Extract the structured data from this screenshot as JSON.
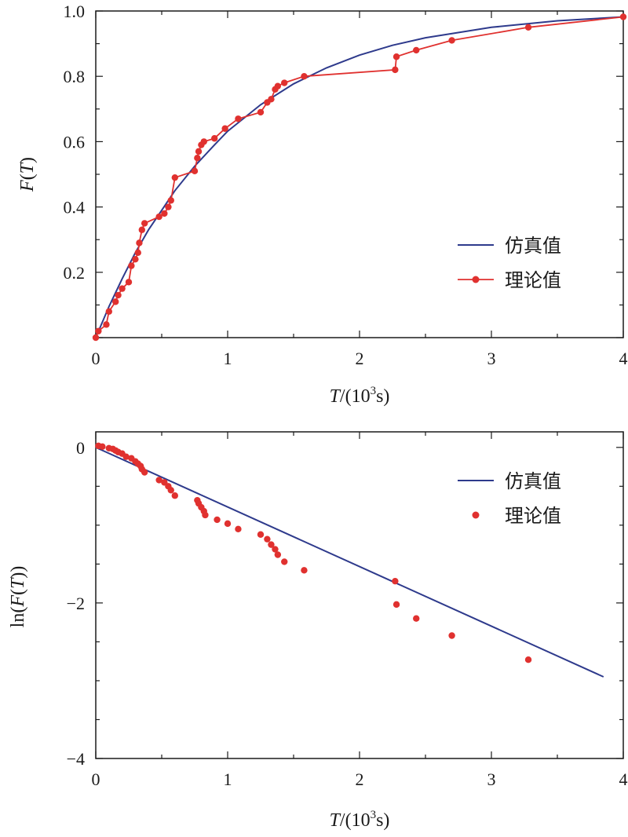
{
  "colors": {
    "sim": "#2e3a8c",
    "theory": "#e0312f",
    "axis": "#1a1a1a"
  },
  "chart_data": [
    {
      "type": "line",
      "title": "",
      "xlabel": "T/(10³s)",
      "xlabel_parts": {
        "T": "T",
        "unit_open": "/(10",
        "exp": "3",
        "unit_close": "s)"
      },
      "ylabel": "F(T)",
      "ylabel_parts": {
        "F": "F",
        "open": "(",
        "T": "T",
        "close": ")"
      },
      "xlim": [
        0,
        4
      ],
      "ylim": [
        0,
        1.0
      ],
      "xticks": [
        0,
        1,
        2,
        3,
        4
      ],
      "xtick_labels": [
        "0",
        "1",
        "2",
        "3",
        "4"
      ],
      "yticks": [
        0.2,
        0.4,
        0.6,
        0.8,
        1.0
      ],
      "ytick_labels": [
        "0.2",
        "0.4",
        "0.6",
        "0.8",
        "1.0"
      ],
      "grid": false,
      "legend_position": "lower-right",
      "series": [
        {
          "name": "仿真值",
          "style": "line",
          "x": [
            0,
            0.1,
            0.2,
            0.3,
            0.4,
            0.5,
            0.6,
            0.75,
            0.9,
            1.0,
            1.25,
            1.5,
            1.75,
            2.0,
            2.25,
            2.5,
            3.0,
            3.5,
            4.0
          ],
          "y": [
            0,
            0.095,
            0.18,
            0.26,
            0.33,
            0.39,
            0.45,
            0.525,
            0.59,
            0.632,
            0.713,
            0.777,
            0.826,
            0.865,
            0.895,
            0.918,
            0.95,
            0.97,
            0.982
          ]
        },
        {
          "name": "理论值",
          "style": "line-marker",
          "x": [
            0,
            0.02,
            0.08,
            0.1,
            0.15,
            0.17,
            0.2,
            0.25,
            0.27,
            0.3,
            0.32,
            0.33,
            0.35,
            0.37,
            0.48,
            0.52,
            0.55,
            0.57,
            0.6,
            0.75,
            0.77,
            0.78,
            0.8,
            0.82,
            0.9,
            0.98,
            1.08,
            1.25,
            1.3,
            1.33,
            1.36,
            1.38,
            1.43,
            1.58,
            2.27,
            2.28,
            2.43,
            2.7,
            3.28,
            4.0
          ],
          "y": [
            0,
            0.02,
            0.04,
            0.08,
            0.11,
            0.13,
            0.15,
            0.17,
            0.22,
            0.24,
            0.26,
            0.29,
            0.33,
            0.35,
            0.37,
            0.38,
            0.4,
            0.42,
            0.49,
            0.51,
            0.55,
            0.57,
            0.59,
            0.6,
            0.61,
            0.64,
            0.67,
            0.69,
            0.72,
            0.73,
            0.76,
            0.77,
            0.78,
            0.8,
            0.82,
            0.86,
            0.88,
            0.91,
            0.95,
            0.982
          ]
        }
      ]
    },
    {
      "type": "scatter",
      "title": "",
      "xlabel": "T/(10³s)",
      "xlabel_parts": {
        "T": "T",
        "unit_open": "/(10",
        "exp": "3",
        "unit_close": "s)"
      },
      "ylabel": "ln(F(T))",
      "ylabel_parts": {
        "ln": "ln(",
        "F": "F",
        "open": "(",
        "T": "T",
        "close": "))"
      },
      "xlim": [
        0,
        4
      ],
      "ylim": [
        -4,
        0.2
      ],
      "xticks": [
        0,
        1,
        2,
        3,
        4
      ],
      "xtick_labels": [
        "0",
        "1",
        "2",
        "3",
        "4"
      ],
      "yticks": [
        0,
        -2,
        -4
      ],
      "ytick_labels": [
        "0",
        "−2",
        "−4"
      ],
      "grid": false,
      "legend_position": "top-right",
      "series": [
        {
          "name": "仿真值",
          "style": "line",
          "x": [
            0,
            3.85
          ],
          "y": [
            0,
            -2.95
          ]
        },
        {
          "name": "理论值",
          "style": "markers",
          "x": [
            0.02,
            0.05,
            0.1,
            0.13,
            0.15,
            0.17,
            0.2,
            0.23,
            0.27,
            0.3,
            0.32,
            0.34,
            0.35,
            0.37,
            0.48,
            0.52,
            0.55,
            0.57,
            0.6,
            0.77,
            0.78,
            0.8,
            0.82,
            0.83,
            0.92,
            1.0,
            1.08,
            1.25,
            1.3,
            1.33,
            1.36,
            1.38,
            1.43,
            1.58,
            2.27,
            2.28,
            2.43,
            2.7,
            3.28
          ],
          "y": [
            0.02,
            0.01,
            -0.01,
            -0.02,
            -0.04,
            -0.06,
            -0.08,
            -0.12,
            -0.14,
            -0.18,
            -0.21,
            -0.24,
            -0.28,
            -0.32,
            -0.42,
            -0.45,
            -0.5,
            -0.55,
            -0.62,
            -0.68,
            -0.72,
            -0.77,
            -0.82,
            -0.87,
            -0.93,
            -0.98,
            -1.05,
            -1.12,
            -1.18,
            -1.25,
            -1.31,
            -1.38,
            -1.47,
            -1.58,
            -1.72,
            -2.02,
            -2.2,
            -2.42,
            -2.73
          ]
        }
      ]
    }
  ]
}
